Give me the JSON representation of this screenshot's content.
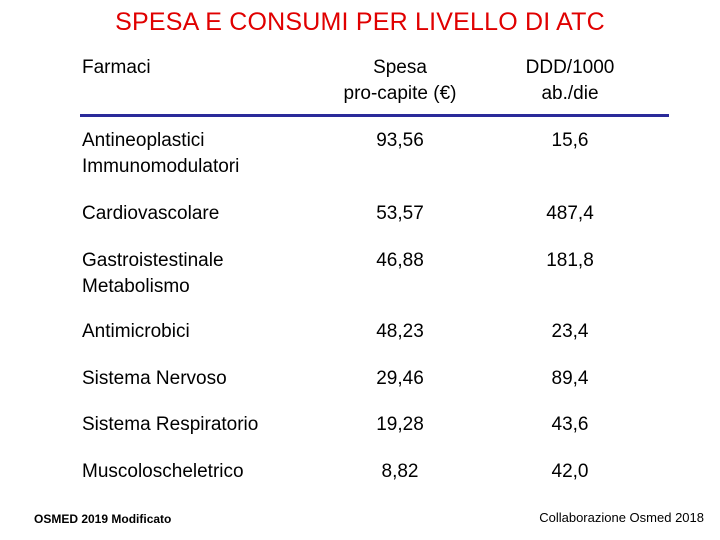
{
  "title": "SPESA E CONSUMI PER LIVELLO DI ATC",
  "table": {
    "headers": {
      "farmaci": "Farmaci",
      "spesa": [
        "Spesa",
        "pro-capite (€)"
      ],
      "ddd": [
        "DDD/1000",
        "ab./die"
      ]
    },
    "rows": [
      {
        "name": [
          "Antineoplastici",
          "Immunomodulatori"
        ],
        "spesa": "93,56",
        "ddd": "15,6"
      },
      {
        "name": [
          "Cardiovascolare"
        ],
        "spesa": "53,57",
        "ddd": "487,4"
      },
      {
        "name": [
          "Gastroistestinale",
          "Metabolismo"
        ],
        "spesa": "46,88",
        "ddd": "181,8"
      },
      {
        "name": [
          "Antimicrobici"
        ],
        "spesa": "48,23",
        "ddd": "23,4"
      },
      {
        "name": [
          "Sistema Nervoso"
        ],
        "spesa": "29,46",
        "ddd": "89,4"
      },
      {
        "name": [
          "Sistema Respiratorio"
        ],
        "spesa": "19,28",
        "ddd": "43,6"
      },
      {
        "name": [
          "Muscoloscheletrico"
        ],
        "spesa": "8,82",
        "ddd": "42,0"
      }
    ]
  },
  "footer": {
    "source_left": "OSMED 2019 Modificato",
    "source_right": "Collaborazione Osmed 2018"
  },
  "colors": {
    "title": "#e00000",
    "rule": "#2a2a9a"
  }
}
